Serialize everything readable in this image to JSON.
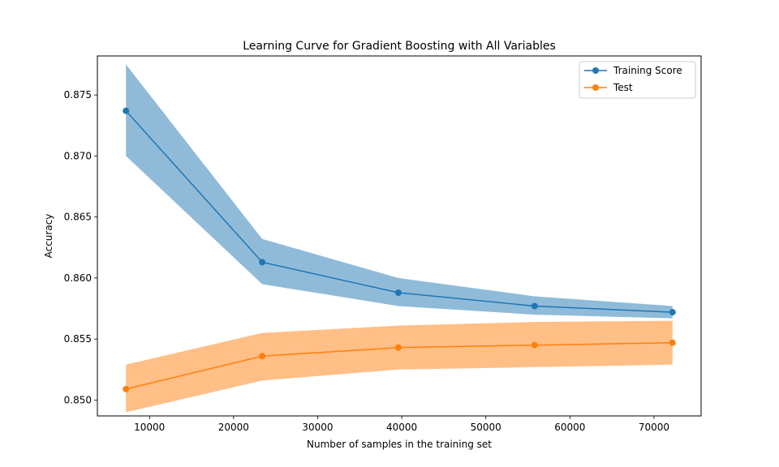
{
  "chart_data": {
    "type": "line",
    "title": "Learning Curve for Gradient Boosting with All Variables",
    "xlabel": "Number of samples in the training set",
    "ylabel": "Accuracy",
    "xlim": [
      3800,
      75600
    ],
    "ylim": [
      0.8487,
      0.8782
    ],
    "xticks": [
      10000,
      20000,
      30000,
      40000,
      50000,
      60000,
      70000
    ],
    "xtick_labels": [
      "10000",
      "20000",
      "30000",
      "40000",
      "50000",
      "60000",
      "70000"
    ],
    "yticks": [
      0.85,
      0.855,
      0.86,
      0.865,
      0.87,
      0.875
    ],
    "ytick_labels": [
      "0.850",
      "0.855",
      "0.860",
      "0.865",
      "0.870",
      "0.875"
    ],
    "grid": false,
    "legend_position": "top-right",
    "x": [
      7200,
      23400,
      39600,
      55800,
      72200
    ],
    "series": [
      {
        "name": "Training Score",
        "color": "#1f77b4",
        "band_color": "#1f77b4",
        "values": [
          0.8737,
          0.8613,
          0.8588,
          0.8577,
          0.8572
        ],
        "upper": [
          0.8775,
          0.8632,
          0.86,
          0.8585,
          0.8577
        ],
        "lower": [
          0.87,
          0.8595,
          0.8577,
          0.857,
          0.8567
        ]
      },
      {
        "name": "Test",
        "color": "#ff7f0e",
        "band_color": "#ff7f0e",
        "values": [
          0.8509,
          0.8536,
          0.8543,
          0.8545,
          0.8547
        ],
        "upper": [
          0.8529,
          0.8555,
          0.8561,
          0.8564,
          0.8565
        ],
        "lower": [
          0.849,
          0.8516,
          0.8525,
          0.8527,
          0.8529
        ]
      }
    ]
  }
}
